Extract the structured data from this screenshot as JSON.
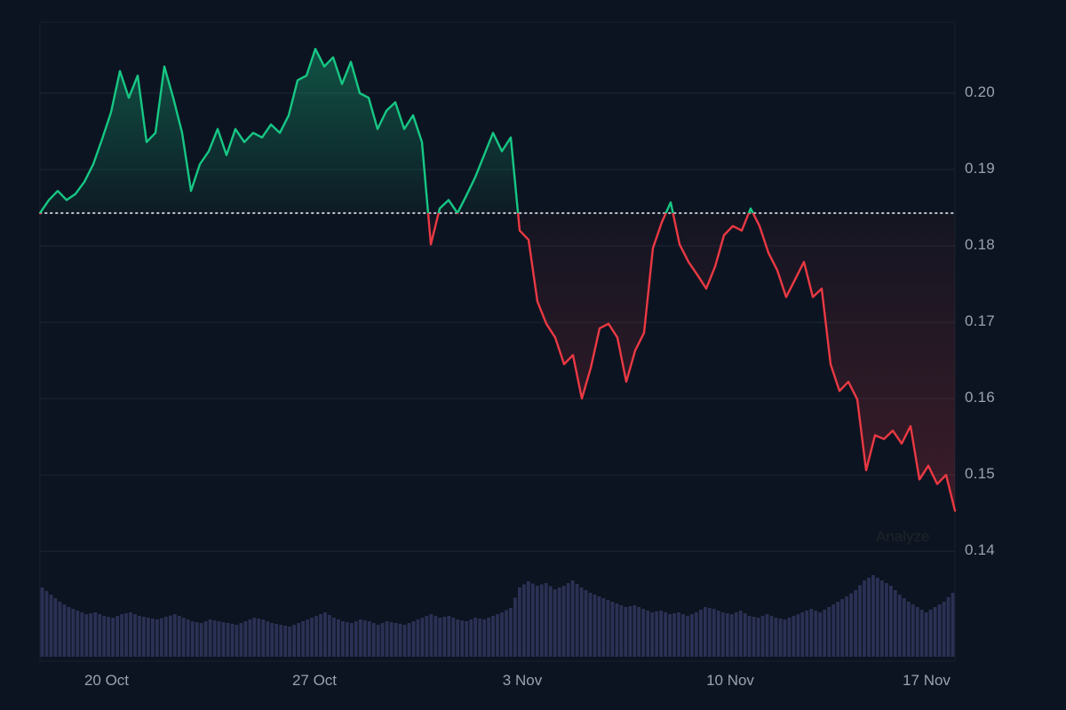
{
  "page": {
    "colors": {
      "background": "#0d1421",
      "axis_text": "#9aa1af",
      "overlay_text": "#1f2329"
    }
  },
  "overlay": {
    "analyze_label": "Analyze"
  },
  "chart_data": {
    "type": "line",
    "title": "",
    "xlabel": "",
    "ylabel": "",
    "description": "Crypto price chart, green above baseline and red below, with volume bars",
    "baseline": 0.1843,
    "ylim": [
      0.1256,
      0.2093
    ],
    "y_ticks": [
      0.2,
      0.19,
      0.18,
      0.17,
      0.16,
      0.15,
      0.14
    ],
    "x_ticks": [
      {
        "label": "20 Oct",
        "f": 0.073
      },
      {
        "label": "27 Oct",
        "f": 0.3
      },
      {
        "label": "3 Nov",
        "f": 0.527
      },
      {
        "label": "10 Nov",
        "f": 0.754
      },
      {
        "label": "17 Nov",
        "f": 0.969
      }
    ],
    "series": [
      {
        "name": "price",
        "values": [
          0.1843,
          0.186,
          0.1872,
          0.186,
          0.1868,
          0.1884,
          0.1907,
          0.194,
          0.1975,
          0.2029,
          0.1994,
          0.2023,
          0.1936,
          0.1948,
          0.2035,
          0.1994,
          0.1948,
          0.1872,
          0.1907,
          0.1924,
          0.1953,
          0.1919,
          0.1953,
          0.1936,
          0.1948,
          0.1942,
          0.1959,
          0.1948,
          0.1971,
          0.2017,
          0.2023,
          0.2058,
          0.2035,
          0.2047,
          0.2012,
          0.2041,
          0.2,
          0.1994,
          0.1953,
          0.1977,
          0.1988,
          0.1953,
          0.1971,
          0.1936,
          0.1802,
          0.1849,
          0.186,
          0.1843,
          0.1866,
          0.189,
          0.1919,
          0.1948,
          0.1924,
          0.1942,
          0.182,
          0.1808,
          0.1727,
          0.1698,
          0.168,
          0.1645,
          0.1657,
          0.16,
          0.164,
          0.1692,
          0.1698,
          0.168,
          0.1622,
          0.1663,
          0.1686,
          0.1797,
          0.1831,
          0.1857,
          0.1802,
          0.1779,
          0.1762,
          0.1744,
          0.1773,
          0.1814,
          0.1826,
          0.182,
          0.1849,
          0.1826,
          0.1791,
          0.1768,
          0.1733,
          0.1756,
          0.1779,
          0.1733,
          0.1744,
          0.1645,
          0.161,
          0.1622,
          0.1599,
          0.1506,
          0.1552,
          0.1547,
          0.1558,
          0.1541,
          0.1564,
          0.1494,
          0.1512,
          0.1488,
          0.15,
          0.1453
        ]
      }
    ],
    "volume": [
      78,
      70,
      62,
      56,
      52,
      48,
      50,
      46,
      44,
      48,
      50,
      46,
      44,
      42,
      45,
      48,
      44,
      40,
      38,
      42,
      40,
      38,
      36,
      40,
      44,
      42,
      38,
      36,
      34,
      38,
      42,
      46,
      50,
      44,
      40,
      38,
      42,
      40,
      36,
      40,
      38,
      36,
      40,
      44,
      48,
      44,
      46,
      42,
      40,
      44,
      42,
      46,
      50,
      55,
      78,
      85,
      80,
      83,
      76,
      80,
      86,
      78,
      72,
      68,
      64,
      60,
      56,
      58,
      54,
      50,
      52,
      48,
      50,
      46,
      50,
      56,
      54,
      50,
      48,
      52,
      46,
      44,
      48,
      44,
      42,
      46,
      50,
      54,
      50,
      56,
      62,
      68,
      75,
      86,
      92,
      86,
      80,
      70,
      62,
      56,
      50,
      56,
      62,
      72
    ],
    "colors": {
      "up": "#16c784",
      "down": "#ea3943",
      "grid": "#1d2636",
      "baseline_dots": "#e2e5ec",
      "volume": "#2a3154"
    },
    "legend": {
      "visible": false
    }
  }
}
